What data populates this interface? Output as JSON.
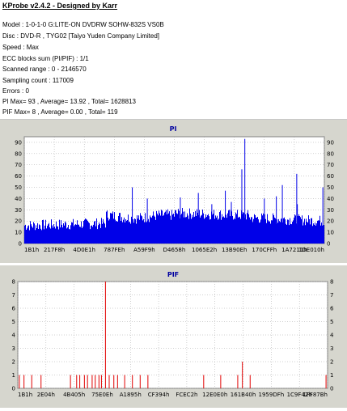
{
  "info": {
    "title": "KProbe v2.4.2 - Designed by Karr",
    "lines": [
      "Model : 1-0-1-0 G:LITE-ON DVDRW SOHW-832S  VS0B",
      "Disc : DVD-R , TYG02 [Taiyo Yuden Company Limited]",
      "Speed : Max",
      "ECC blocks sum (PI/PIF) : 1/1",
      "Scanned range : 0 - 2146570",
      "Sampling count : 117009",
      "Errors : 0",
      "PI Max= 93 , Average= 13.92 , Total= 1628813",
      "PIF Max= 8 , Average= 0.00 , Total= 119"
    ]
  },
  "colors": {
    "pi": "#0000e8",
    "pif": "#e00000",
    "bg": "#d6d6ce",
    "title": "#0000a0",
    "grid": "#a0a0a0"
  },
  "chart_data": [
    {
      "type": "bar",
      "title": "PI",
      "ylim": [
        0,
        95
      ],
      "yticks": [
        0,
        10,
        20,
        30,
        40,
        50,
        60,
        70,
        80,
        90
      ],
      "xtick_labels": [
        "1B1h",
        "217F8h",
        "4D0E1h",
        "787FEh",
        "A59F9h",
        "D4658h",
        "1065E2h",
        "13B90Eh",
        "170CFFh",
        "1A7211h",
        "1DE010h"
      ],
      "grid": true,
      "stats": {
        "max": 93,
        "average": 13.92,
        "total": 1628813
      },
      "spikes": [
        {
          "x": 0.36,
          "y": 50
        },
        {
          "x": 0.41,
          "y": 40
        },
        {
          "x": 0.52,
          "y": 41
        },
        {
          "x": 0.58,
          "y": 45
        },
        {
          "x": 0.625,
          "y": 35
        },
        {
          "x": 0.67,
          "y": 47
        },
        {
          "x": 0.69,
          "y": 37
        },
        {
          "x": 0.84,
          "y": 42
        },
        {
          "x": 0.8,
          "y": 40
        },
        {
          "x": 0.86,
          "y": 52
        },
        {
          "x": 0.91,
          "y": 35
        },
        {
          "x": 0.995,
          "y": 50
        },
        {
          "x": 0.735,
          "y": 93
        },
        {
          "x": 0.725,
          "y": 66
        },
        {
          "x": 0.908,
          "y": 62
        }
      ]
    },
    {
      "type": "bar",
      "title": "PIF",
      "ylim": [
        0,
        8
      ],
      "yticks": [
        0,
        1,
        2,
        3,
        4,
        5,
        6,
        7,
        8
      ],
      "xtick_labels": [
        "1B1h",
        "2E04h",
        "4B405h",
        "75E0Eh",
        "A1895h",
        "CF394h",
        "FCEC2h",
        "12E0E0h",
        "161B40h",
        "1959DFh",
        "1C9F42h",
        "1FF87Bh"
      ],
      "grid": true,
      "stats": {
        "max": 8,
        "average": 0.0,
        "total": 119
      },
      "points": [
        {
          "x": 0.005,
          "y": 1
        },
        {
          "x": 0.02,
          "y": 1
        },
        {
          "x": 0.045,
          "y": 1
        },
        {
          "x": 0.075,
          "y": 1
        },
        {
          "x": 0.17,
          "y": 1
        },
        {
          "x": 0.19,
          "y": 1
        },
        {
          "x": 0.2,
          "y": 1
        },
        {
          "x": 0.215,
          "y": 1
        },
        {
          "x": 0.225,
          "y": 1
        },
        {
          "x": 0.24,
          "y": 1
        },
        {
          "x": 0.25,
          "y": 1
        },
        {
          "x": 0.262,
          "y": 1
        },
        {
          "x": 0.27,
          "y": 1
        },
        {
          "x": 0.283,
          "y": 8
        },
        {
          "x": 0.295,
          "y": 1
        },
        {
          "x": 0.31,
          "y": 1
        },
        {
          "x": 0.322,
          "y": 1
        },
        {
          "x": 0.345,
          "y": 1
        },
        {
          "x": 0.37,
          "y": 1
        },
        {
          "x": 0.395,
          "y": 1
        },
        {
          "x": 0.42,
          "y": 1
        },
        {
          "x": 0.6,
          "y": 1
        },
        {
          "x": 0.655,
          "y": 1
        },
        {
          "x": 0.71,
          "y": 1
        },
        {
          "x": 0.725,
          "y": 2
        },
        {
          "x": 0.75,
          "y": 1
        },
        {
          "x": 0.995,
          "y": 1
        }
      ]
    }
  ]
}
